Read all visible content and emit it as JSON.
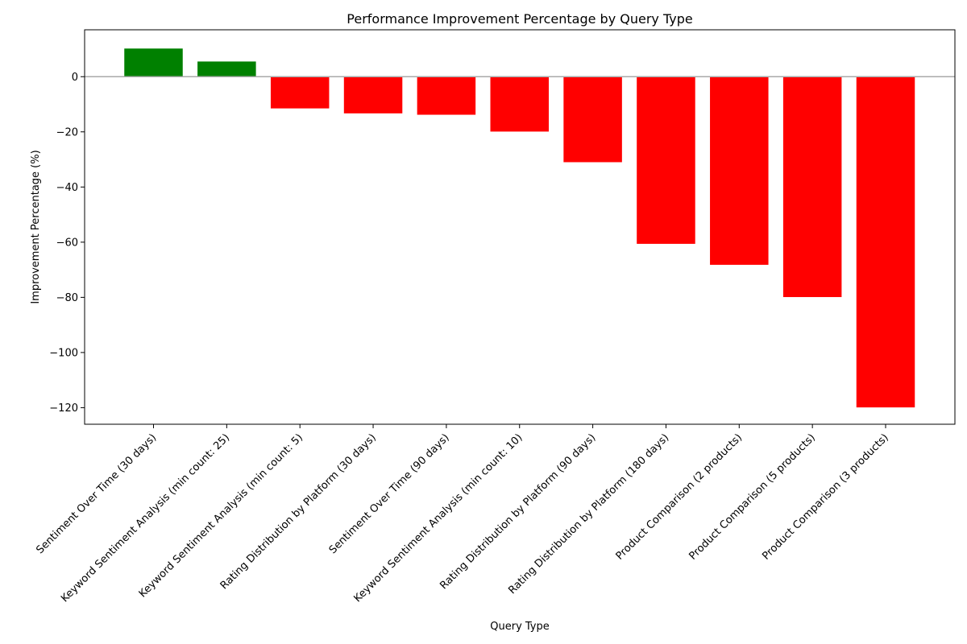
{
  "chart_data": {
    "type": "bar",
    "title": "Performance Improvement Percentage by Query Type",
    "xlabel": "Query Type",
    "ylabel": "Improvement Percentage (%)",
    "ylim": [
      -126,
      17
    ],
    "yticks": [
      0,
      -20,
      -40,
      -60,
      -80,
      -100,
      -120
    ],
    "grid": false,
    "categories": [
      "Sentiment Over Time (30 days)",
      "Keyword Sentiment Analysis (min count: 25)",
      "Keyword Sentiment Analysis (min count: 5)",
      "Rating Distribution by Platform (30 days)",
      "Sentiment Over Time (90 days)",
      "Keyword Sentiment Analysis (min count: 10)",
      "Rating Distribution by Platform (90 days)",
      "Rating Distribution by Platform (180 days)",
      "Product Comparison (2 products)",
      "Product Comparison (5 products)",
      "Product Comparison (3 products)"
    ],
    "values": [
      10.2,
      5.5,
      -11.5,
      -13.3,
      -13.8,
      -19.9,
      -31.0,
      -60.6,
      -68.2,
      -79.9,
      -119.9
    ],
    "colors": {
      "positive": "#008000",
      "negative": "#ff0000",
      "zero_line": "#aaaaaa"
    }
  }
}
